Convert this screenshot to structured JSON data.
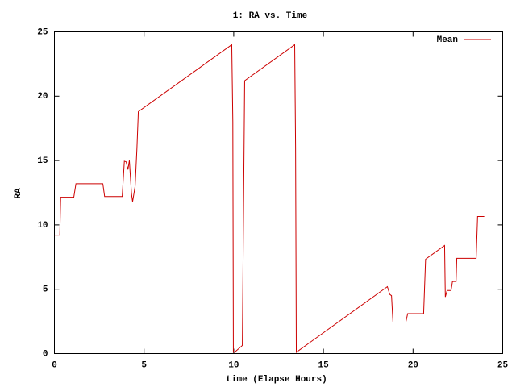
{
  "chart_data": {
    "type": "line",
    "title": "1: RA vs. Time",
    "x_label": "time (Elapse Hours)",
    "y_label": "RA",
    "x": [
      0,
      0.3,
      0.35,
      1.08,
      1.2,
      2.7,
      2.8,
      3.78,
      3.9,
      4.0,
      4.1,
      4.18,
      4.3,
      4.36,
      4.5,
      4.6,
      4.68,
      9.89,
      9.95,
      9.98,
      10.05,
      10.48,
      10.61,
      13.4,
      13.45,
      13.49,
      18.57,
      18.7,
      18.8,
      18.88,
      19.6,
      19.7,
      20.59,
      20.7,
      21.76,
      21.8,
      21.9,
      22.12,
      22.2,
      22.4,
      22.44,
      23.52,
      23.6,
      23.97
    ],
    "series": [
      {
        "name": "Mean",
        "color": "#cc0000",
        "values": [
          9.2,
          9.2,
          12.15,
          12.15,
          13.2,
          13.2,
          12.2,
          12.2,
          14.95,
          14.9,
          14.3,
          15.0,
          12.4,
          11.8,
          13.0,
          15.9,
          18.8,
          24.0,
          18.0,
          0.1,
          0.1,
          0.63,
          21.2,
          24.0,
          16.0,
          0.1,
          5.2,
          4.6,
          4.5,
          2.44,
          2.44,
          3.1,
          3.1,
          7.33,
          8.4,
          4.4,
          4.9,
          4.9,
          5.6,
          5.6,
          7.4,
          7.4,
          10.65,
          10.65
        ]
      }
    ],
    "xlim": [
      0,
      25
    ],
    "xticks": [
      0,
      5,
      10,
      15,
      20,
      25
    ],
    "ylim": [
      0,
      25
    ],
    "yticks": [
      0,
      5,
      10,
      15,
      20,
      25
    ],
    "grid": false,
    "legend": "top-right"
  }
}
